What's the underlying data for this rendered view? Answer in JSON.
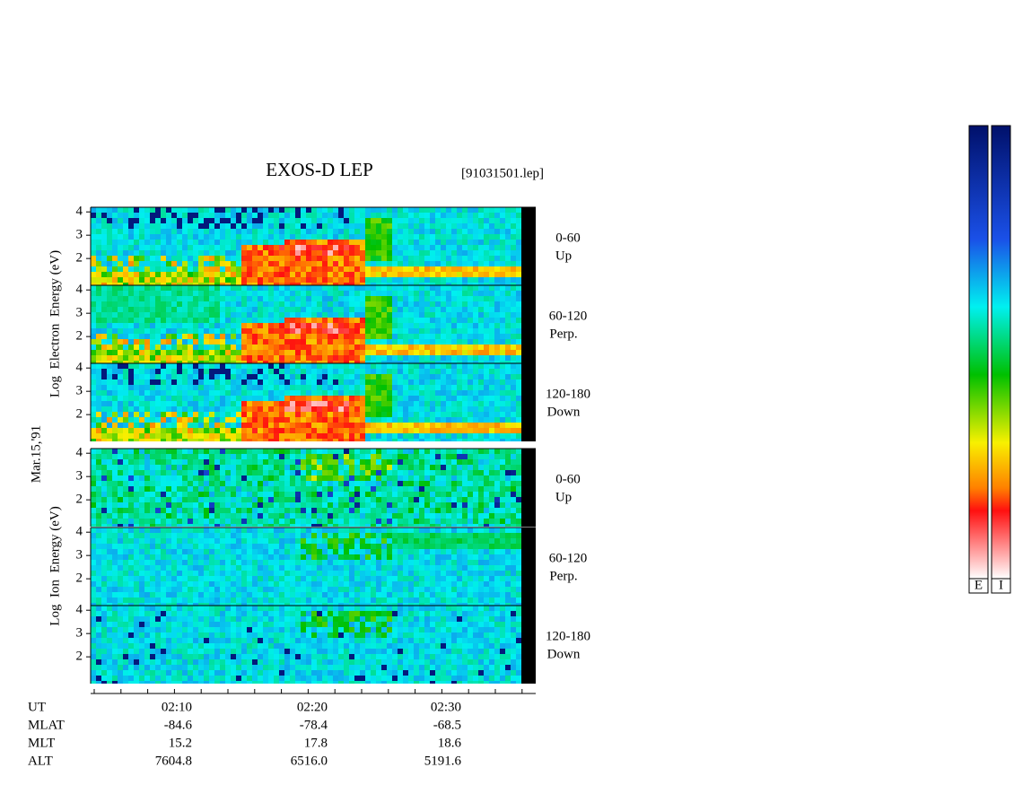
{
  "title": "EXOS-D LEP",
  "file": "[91031501.lep]",
  "date": "Mar.15,'91",
  "groups": [
    {
      "ylabel": "Log  Electron  Energy (eV)",
      "panels": [
        {
          "angle": "0-60",
          "direction": "Up",
          "yticks": [
            2,
            3,
            4
          ]
        },
        {
          "angle": "60-120",
          "direction": "Perp.",
          "yticks": [
            2,
            3,
            4
          ]
        },
        {
          "angle": "120-180",
          "direction": "Down",
          "yticks": [
            2,
            3,
            4
          ]
        }
      ]
    },
    {
      "ylabel": "Log  Ion  Energy (eV)",
      "panels": [
        {
          "angle": "0-60",
          "direction": "Up",
          "yticks": [
            2,
            3,
            4
          ]
        },
        {
          "angle": "60-120",
          "direction": "Perp.",
          "yticks": [
            2,
            3,
            4
          ]
        },
        {
          "angle": "120-180",
          "direction": "Down",
          "yticks": [
            2,
            3,
            4
          ]
        }
      ]
    }
  ],
  "ylim": [
    0.85,
    4.2
  ],
  "ephemeris": {
    "labels": [
      "UT",
      "MLAT",
      "MLT",
      "ALT"
    ],
    "columns": [
      [
        "02:10",
        "-84.6",
        "15.2",
        "7604.8"
      ],
      [
        "02:20",
        "-78.4",
        "17.8",
        "6516.0"
      ],
      [
        "02:30",
        "-68.5",
        "18.6",
        "5191.6"
      ]
    ]
  },
  "colorbars": [
    "E",
    "I"
  ]
}
